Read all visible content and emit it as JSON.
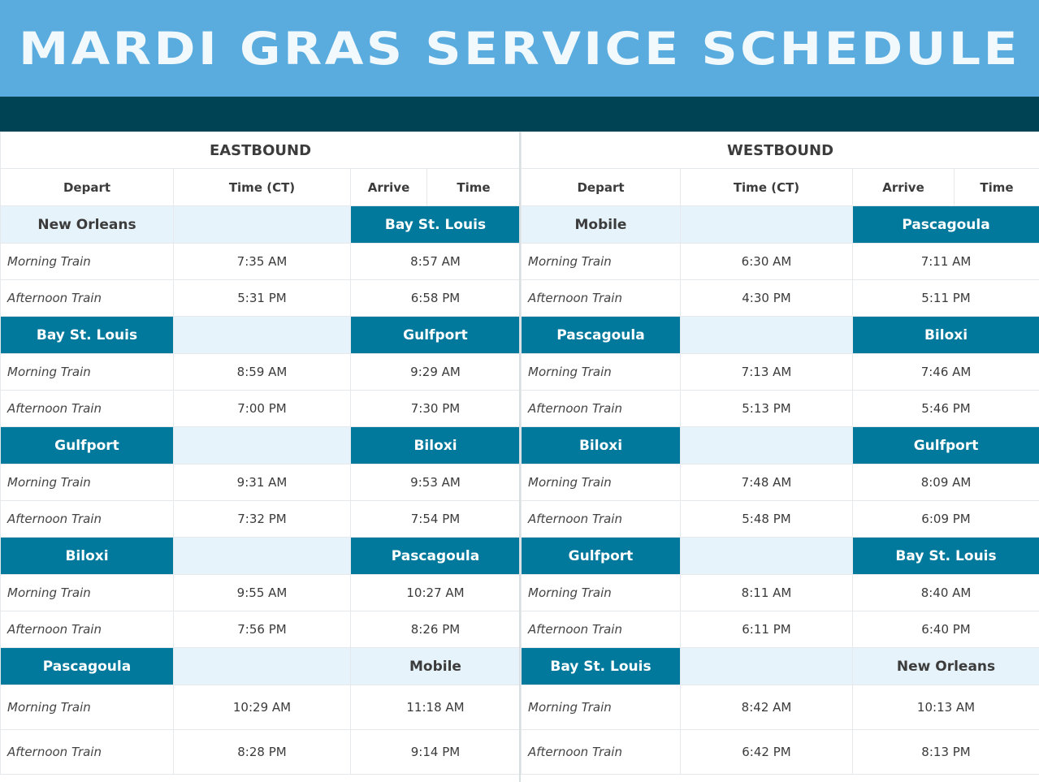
{
  "title": "MARDI GRAS SERVICE SCHEDULE",
  "colors": {
    "header_bg": "#5aacdf",
    "dark_bar": "#004354",
    "station_dark": "#00799c",
    "station_light": "#e6f3fa"
  },
  "eastbound": {
    "title": "EASTBOUND",
    "columns": {
      "depart": "Depart",
      "time_ct": "Time (CT)",
      "arrive": "Arrive",
      "time": "Time"
    },
    "segments": [
      {
        "from": "New Orleans",
        "to": "Bay St. Louis",
        "from_style": "light",
        "to_style": "dark",
        "trains": [
          {
            "label": "Morning Train",
            "depart": "7:35 AM",
            "arrive": "8:57 AM"
          },
          {
            "label": "Afternoon Train",
            "depart": "5:31 PM",
            "arrive": "6:58 PM"
          }
        ]
      },
      {
        "from": "Bay St. Louis",
        "to": "Gulfport",
        "from_style": "dark",
        "to_style": "dark",
        "trains": [
          {
            "label": "Morning Train",
            "depart": "8:59 AM",
            "arrive": "9:29 AM"
          },
          {
            "label": "Afternoon Train",
            "depart": "7:00 PM",
            "arrive": "7:30 PM"
          }
        ]
      },
      {
        "from": "Gulfport",
        "to": "Biloxi",
        "from_style": "dark",
        "to_style": "dark",
        "trains": [
          {
            "label": "Morning Train",
            "depart": "9:31 AM",
            "arrive": "9:53 AM"
          },
          {
            "label": "Afternoon Train",
            "depart": "7:32 PM",
            "arrive": "7:54 PM"
          }
        ]
      },
      {
        "from": "Biloxi",
        "to": "Pascagoula",
        "from_style": "dark",
        "to_style": "dark",
        "trains": [
          {
            "label": "Morning Train",
            "depart": "9:55 AM",
            "arrive": "10:27 AM"
          },
          {
            "label": "Afternoon Train",
            "depart": "7:56 PM",
            "arrive": "8:26 PM"
          }
        ]
      },
      {
        "from": "Pascagoula",
        "to": "Mobile",
        "from_style": "dark",
        "to_style": "light",
        "trains": [
          {
            "label": "Morning Train",
            "depart": "10:29 AM",
            "arrive": "11:18 AM"
          },
          {
            "label": "Afternoon Train",
            "depart": "8:28 PM",
            "arrive": "9:14 PM"
          }
        ]
      }
    ]
  },
  "westbound": {
    "title": "WESTBOUND",
    "columns": {
      "depart": "Depart",
      "time_ct": "Time (CT)",
      "arrive": "Arrive",
      "time": "Time"
    },
    "segments": [
      {
        "from": "Mobile",
        "to": "Pascagoula",
        "from_style": "light",
        "to_style": "dark",
        "trains": [
          {
            "label": "Morning Train",
            "depart": "6:30 AM",
            "arrive": "7:11 AM"
          },
          {
            "label": "Afternoon Train",
            "depart": "4:30 PM",
            "arrive": "5:11 PM"
          }
        ]
      },
      {
        "from": "Pascagoula",
        "to": "Biloxi",
        "from_style": "dark",
        "to_style": "dark",
        "trains": [
          {
            "label": "Morning Train",
            "depart": "7:13 AM",
            "arrive": "7:46 AM"
          },
          {
            "label": "Afternoon Train",
            "depart": "5:13 PM",
            "arrive": "5:46 PM"
          }
        ]
      },
      {
        "from": "Biloxi",
        "to": "Gulfport",
        "from_style": "dark",
        "to_style": "dark",
        "trains": [
          {
            "label": "Morning Train",
            "depart": "7:48 AM",
            "arrive": "8:09 AM"
          },
          {
            "label": "Afternoon Train",
            "depart": "5:48 PM",
            "arrive": "6:09 PM"
          }
        ]
      },
      {
        "from": "Gulfport",
        "to": "Bay St. Louis",
        "from_style": "dark",
        "to_style": "dark",
        "trains": [
          {
            "label": "Morning Train",
            "depart": "8:11 AM",
            "arrive": "8:40 AM"
          },
          {
            "label": "Afternoon Train",
            "depart": "6:11 PM",
            "arrive": "6:40 PM"
          }
        ]
      },
      {
        "from": "Bay St. Louis",
        "to": "New Orleans",
        "from_style": "dark",
        "to_style": "light",
        "trains": [
          {
            "label": "Morning Train",
            "depart": "8:42 AM",
            "arrive": "10:13 AM"
          },
          {
            "label": "Afternoon Train",
            "depart": "6:42 PM",
            "arrive": "8:13 PM"
          }
        ]
      }
    ]
  }
}
